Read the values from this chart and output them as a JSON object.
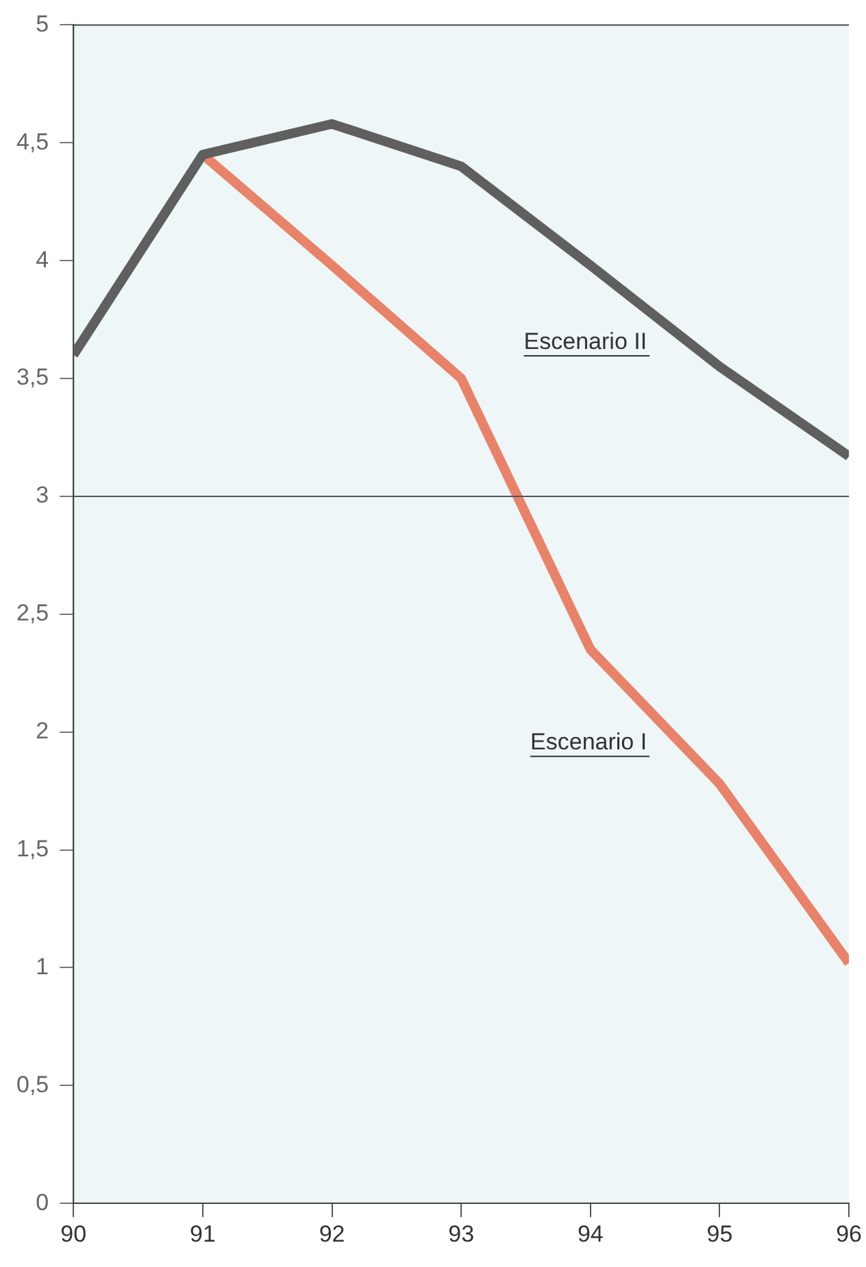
{
  "chart_data": {
    "type": "line",
    "x": [
      90,
      91,
      92,
      93,
      94,
      95,
      96
    ],
    "xlim": [
      90,
      96
    ],
    "xticks": [
      90,
      91,
      92,
      93,
      94,
      95,
      96
    ],
    "ylim": [
      0,
      5
    ],
    "yticks": [
      0,
      {
        "value": 0.5,
        "label": "0,5"
      },
      1,
      {
        "value": 1.5,
        "label": "1,5"
      },
      2,
      {
        "value": 2.5,
        "label": "2,5"
      },
      3,
      {
        "value": 3.5,
        "label": "3,5"
      },
      4,
      {
        "value": 4.5,
        "label": "4,5"
      },
      5
    ],
    "series": [
      {
        "name": "Escenario II",
        "color": "#5f5f5f",
        "values": [
          3.6,
          4.45,
          4.58,
          4.4,
          3.98,
          3.55,
          3.17
        ]
      },
      {
        "name": "Escenario I",
        "color": "#e8836b",
        "values": [
          null,
          4.45,
          3.98,
          3.5,
          2.35,
          1.78,
          1.02
        ]
      }
    ],
    "ref_lines": [
      {
        "axis": "y",
        "value": 3,
        "color": "#555555"
      }
    ],
    "grid": false,
    "legend": false,
    "marker": "none",
    "line_style": "solid"
  }
}
